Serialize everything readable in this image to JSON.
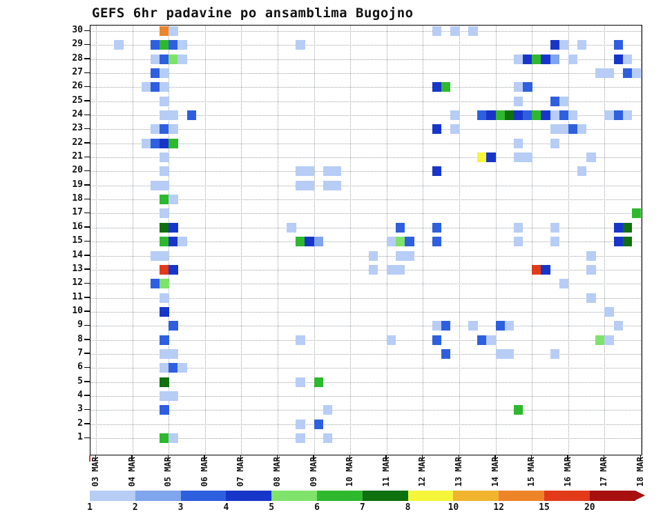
{
  "title": "GEFS 6hr padavine po ansamblima Bugojno",
  "chart_data": {
    "type": "heatmap",
    "title": "GEFS 6hr padavine po ansamblima Bugojno",
    "xlabel": "",
    "ylabel": "",
    "x_axis": {
      "tick_labels": [
        "03 MAR",
        "04 MAR",
        "05 MAR",
        "06 MAR",
        "07 MAR",
        "08 MAR",
        "09 MAR",
        "10 MAR",
        "11 MAR",
        "12 MAR",
        "13 MAR",
        "14 MAR",
        "15 MAR",
        "16 MAR",
        "17 MAR",
        "18 MAR"
      ],
      "steps_per_day": 4,
      "total_steps": 60,
      "step_unit": "6hr"
    },
    "y_axis": {
      "tick_labels": [
        "1",
        "2",
        "3",
        "4",
        "5",
        "6",
        "7",
        "8",
        "9",
        "10",
        "11",
        "12",
        "13",
        "14",
        "15",
        "16",
        "17",
        "18",
        "19",
        "20",
        "21",
        "22",
        "23",
        "24",
        "25",
        "26",
        "27",
        "28",
        "29",
        "30"
      ],
      "min": 1,
      "max": 30
    },
    "grid": {
      "horizontal": "dotted line per ensemble member",
      "vertical": "dotted line per day"
    },
    "legend": {
      "position": "bottom",
      "values": [
        1,
        2,
        3,
        4,
        5,
        6,
        7,
        8,
        10,
        12,
        15,
        20
      ],
      "labels": [
        "1",
        "2",
        "3",
        "4",
        "5",
        "6",
        "7",
        "8",
        "10",
        "12",
        "15",
        "20"
      ],
      "colors": [
        "#b7cdf5",
        "#7fa5ec",
        "#2e5fdf",
        "#1736c9",
        "#7fe26a",
        "#2eb82e",
        "#0e700e",
        "#f5f53a",
        "#f0b42e",
        "#ee8428",
        "#e23b1a",
        "#a81010"
      ]
    },
    "cell_format": "[ensemble_member, six_hour_step_index_from_03MAR00h, precip_value]",
    "cells": [
      [
        30,
        7,
        12
      ],
      [
        30,
        8,
        1
      ],
      [
        30,
        37,
        1
      ],
      [
        30,
        39,
        1
      ],
      [
        30,
        41,
        1
      ],
      [
        29,
        2,
        1
      ],
      [
        29,
        6,
        3
      ],
      [
        29,
        7,
        6
      ],
      [
        29,
        8,
        3
      ],
      [
        29,
        9,
        1
      ],
      [
        29,
        22,
        1
      ],
      [
        29,
        50,
        4
      ],
      [
        29,
        51,
        1
      ],
      [
        29,
        53,
        1
      ],
      [
        29,
        57,
        3
      ],
      [
        28,
        6,
        1
      ],
      [
        28,
        7,
        3
      ],
      [
        28,
        8,
        5
      ],
      [
        28,
        9,
        1
      ],
      [
        28,
        46,
        1
      ],
      [
        28,
        47,
        4
      ],
      [
        28,
        48,
        6
      ],
      [
        28,
        49,
        4
      ],
      [
        28,
        50,
        2
      ],
      [
        28,
        52,
        1
      ],
      [
        28,
        57,
        4
      ],
      [
        28,
        58,
        1
      ],
      [
        27,
        6,
        3
      ],
      [
        27,
        7,
        1
      ],
      [
        27,
        55,
        1
      ],
      [
        27,
        56,
        1
      ],
      [
        27,
        58,
        3
      ],
      [
        27,
        59,
        1
      ],
      [
        26,
        5,
        1
      ],
      [
        26,
        6,
        3
      ],
      [
        26,
        7,
        1
      ],
      [
        26,
        37,
        4
      ],
      [
        26,
        38,
        6
      ],
      [
        26,
        46,
        1
      ],
      [
        26,
        47,
        3
      ],
      [
        25,
        7,
        1
      ],
      [
        25,
        46,
        1
      ],
      [
        25,
        50,
        3
      ],
      [
        25,
        51,
        1
      ],
      [
        24,
        7,
        1
      ],
      [
        24,
        8,
        1
      ],
      [
        24,
        10,
        3
      ],
      [
        24,
        39,
        1
      ],
      [
        24,
        42,
        3
      ],
      [
        24,
        43,
        4
      ],
      [
        24,
        44,
        6
      ],
      [
        24,
        45,
        7
      ],
      [
        24,
        46,
        4
      ],
      [
        24,
        47,
        3
      ],
      [
        24,
        48,
        6
      ],
      [
        24,
        49,
        4
      ],
      [
        24,
        50,
        1
      ],
      [
        24,
        51,
        3
      ],
      [
        24,
        52,
        1
      ],
      [
        24,
        56,
        1
      ],
      [
        24,
        57,
        3
      ],
      [
        24,
        58,
        1
      ],
      [
        23,
        6,
        1
      ],
      [
        23,
        7,
        3
      ],
      [
        23,
        8,
        1
      ],
      [
        23,
        37,
        4
      ],
      [
        23,
        39,
        1
      ],
      [
        23,
        50,
        1
      ],
      [
        23,
        51,
        1
      ],
      [
        23,
        52,
        3
      ],
      [
        23,
        53,
        1
      ],
      [
        22,
        5,
        1
      ],
      [
        22,
        6,
        3
      ],
      [
        22,
        7,
        4
      ],
      [
        22,
        8,
        6
      ],
      [
        22,
        46,
        1
      ],
      [
        22,
        50,
        1
      ],
      [
        21,
        7,
        1
      ],
      [
        21,
        42,
        8
      ],
      [
        21,
        43,
        4
      ],
      [
        21,
        46,
        1
      ],
      [
        21,
        47,
        1
      ],
      [
        21,
        54,
        1
      ],
      [
        20,
        7,
        1
      ],
      [
        20,
        22,
        1
      ],
      [
        20,
        23,
        1
      ],
      [
        20,
        25,
        1
      ],
      [
        20,
        26,
        1
      ],
      [
        20,
        37,
        4
      ],
      [
        20,
        53,
        1
      ],
      [
        19,
        6,
        1
      ],
      [
        19,
        7,
        1
      ],
      [
        19,
        22,
        1
      ],
      [
        19,
        23,
        1
      ],
      [
        19,
        25,
        1
      ],
      [
        19,
        26,
        1
      ],
      [
        18,
        7,
        6
      ],
      [
        18,
        8,
        1
      ],
      [
        17,
        7,
        1
      ],
      [
        17,
        59,
        6
      ],
      [
        16,
        7,
        7
      ],
      [
        16,
        8,
        4
      ],
      [
        16,
        21,
        1
      ],
      [
        16,
        33,
        3
      ],
      [
        16,
        37,
        3
      ],
      [
        16,
        46,
        1
      ],
      [
        16,
        50,
        1
      ],
      [
        16,
        57,
        4
      ],
      [
        16,
        58,
        7
      ],
      [
        15,
        7,
        6
      ],
      [
        15,
        8,
        4
      ],
      [
        15,
        9,
        1
      ],
      [
        15,
        22,
        6
      ],
      [
        15,
        23,
        4
      ],
      [
        15,
        24,
        2
      ],
      [
        15,
        32,
        1
      ],
      [
        15,
        33,
        5
      ],
      [
        15,
        34,
        3
      ],
      [
        15,
        37,
        3
      ],
      [
        15,
        46,
        1
      ],
      [
        15,
        50,
        1
      ],
      [
        15,
        57,
        4
      ],
      [
        15,
        58,
        7
      ],
      [
        14,
        6,
        1
      ],
      [
        14,
        7,
        1
      ],
      [
        14,
        30,
        1
      ],
      [
        14,
        33,
        1
      ],
      [
        14,
        34,
        1
      ],
      [
        14,
        54,
        1
      ],
      [
        13,
        7,
        15
      ],
      [
        13,
        8,
        4
      ],
      [
        13,
        30,
        1
      ],
      [
        13,
        32,
        1
      ],
      [
        13,
        33,
        1
      ],
      [
        13,
        48,
        15
      ],
      [
        13,
        49,
        4
      ],
      [
        13,
        54,
        1
      ],
      [
        12,
        6,
        3
      ],
      [
        12,
        7,
        5
      ],
      [
        12,
        51,
        1
      ],
      [
        11,
        7,
        1
      ],
      [
        11,
        54,
        1
      ],
      [
        10,
        7,
        4
      ],
      [
        10,
        56,
        1
      ],
      [
        9,
        8,
        3
      ],
      [
        9,
        37,
        1
      ],
      [
        9,
        38,
        3
      ],
      [
        9,
        41,
        1
      ],
      [
        9,
        44,
        3
      ],
      [
        9,
        45,
        1
      ],
      [
        9,
        57,
        1
      ],
      [
        8,
        7,
        3
      ],
      [
        8,
        22,
        1
      ],
      [
        8,
        32,
        1
      ],
      [
        8,
        37,
        3
      ],
      [
        8,
        42,
        3
      ],
      [
        8,
        43,
        1
      ],
      [
        8,
        55,
        5
      ],
      [
        8,
        56,
        1
      ],
      [
        7,
        7,
        1
      ],
      [
        7,
        8,
        1
      ],
      [
        7,
        38,
        3
      ],
      [
        7,
        44,
        1
      ],
      [
        7,
        45,
        1
      ],
      [
        7,
        50,
        1
      ],
      [
        6,
        7,
        1
      ],
      [
        6,
        8,
        3
      ],
      [
        6,
        9,
        1
      ],
      [
        5,
        7,
        7
      ],
      [
        5,
        22,
        1
      ],
      [
        5,
        24,
        6
      ],
      [
        4,
        7,
        1
      ],
      [
        4,
        8,
        1
      ],
      [
        3,
        7,
        3
      ],
      [
        3,
        25,
        1
      ],
      [
        3,
        46,
        6
      ],
      [
        2,
        22,
        1
      ],
      [
        2,
        24,
        3
      ],
      [
        1,
        7,
        6
      ],
      [
        1,
        8,
        1
      ],
      [
        1,
        22,
        1
      ],
      [
        1,
        25,
        1
      ]
    ]
  }
}
